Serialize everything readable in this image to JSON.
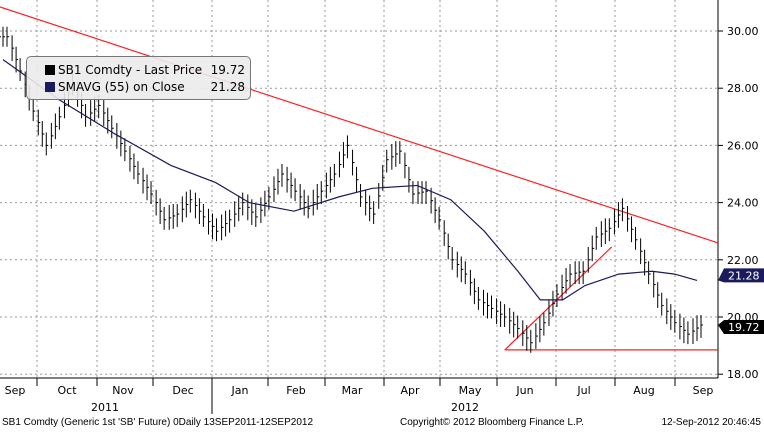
{
  "chart_data": {
    "type": "line",
    "title": "SB1 Comdty (Generic 1st 'SB' Future)",
    "ylim": [
      17.6,
      31.2
    ],
    "y_ticks": [
      "30.00",
      "28.00",
      "26.00",
      "24.00",
      "22.00",
      "20.00",
      "18.00"
    ],
    "y_tick_values": [
      30,
      28,
      26,
      24,
      22,
      20,
      18
    ],
    "x_months": [
      "Sep",
      "Oct",
      "Nov",
      "Dec",
      "Jan",
      "Feb",
      "Mar",
      "Apr",
      "May",
      "Jun",
      "Jul",
      "Aug",
      "Sep"
    ],
    "x_years": [
      "2011",
      "2012"
    ],
    "grid": true,
    "legend_placement": "top-left",
    "series": [
      {
        "name": "SB1 Comdty - Last Price",
        "value_label": "19.72",
        "color": "#000000",
        "weekly_close": [
          29.8,
          28.6,
          27.2,
          26.0,
          27.0,
          28.2,
          27.0,
          27.4,
          26.6,
          25.8,
          25.0,
          24.3,
          23.4,
          23.6,
          24.1,
          23.5,
          23.0,
          23.4,
          24.0,
          23.5,
          24.2,
          25.0,
          24.4,
          23.8,
          24.4,
          25.0,
          26.0,
          24.2,
          23.6,
          25.5,
          25.8,
          24.3,
          24.4,
          23.4,
          22.0,
          21.5,
          20.6,
          20.3,
          20.0,
          19.6,
          19.1,
          19.8,
          20.8,
          21.5,
          21.6,
          22.8,
          23.1,
          23.8,
          22.7,
          21.5,
          20.4,
          19.8,
          19.4,
          19.72
        ]
      },
      {
        "name": "SMAVG (55) on Close",
        "value_label": "21.28",
        "color": "#1a1a5e",
        "points": [
          [
            0,
            29.0
          ],
          [
            5,
            27.6
          ],
          [
            10,
            26.4
          ],
          [
            15,
            25.3
          ],
          [
            19,
            24.7
          ],
          [
            22,
            24.0
          ],
          [
            26,
            23.7
          ],
          [
            30,
            24.2
          ],
          [
            33,
            24.5
          ],
          [
            37,
            24.6
          ],
          [
            40,
            24.1
          ],
          [
            43,
            23.0
          ],
          [
            46,
            21.6
          ],
          [
            48,
            20.6
          ],
          [
            50,
            20.6
          ],
          [
            52,
            21.1
          ],
          [
            55,
            21.5
          ],
          [
            58,
            21.6
          ],
          [
            60,
            21.5
          ],
          [
            62,
            21.28
          ]
        ]
      }
    ],
    "annotations": [
      {
        "type": "trendline",
        "color": "#ff2020",
        "from": [
          0,
          30.84
        ],
        "to": [
          1,
          22.59
        ]
      },
      {
        "type": "trendline",
        "color": "#ff2020",
        "from": [
          0.703,
          18.85
        ],
        "to": [
          0.852,
          22.45
        ]
      },
      {
        "type": "hline",
        "color": "#ff2020",
        "from_x": 0.703,
        "to_x": 1,
        "value": 18.85
      }
    ]
  },
  "footer": {
    "left": "SB1 Comdty (Generic 1st 'SB' Future) 0Daily 13SEP2011-12SEP2012",
    "center": "Copyright© 2012 Bloomberg Finance L.P.",
    "right": "12-Sep-2012 20:46:45"
  }
}
